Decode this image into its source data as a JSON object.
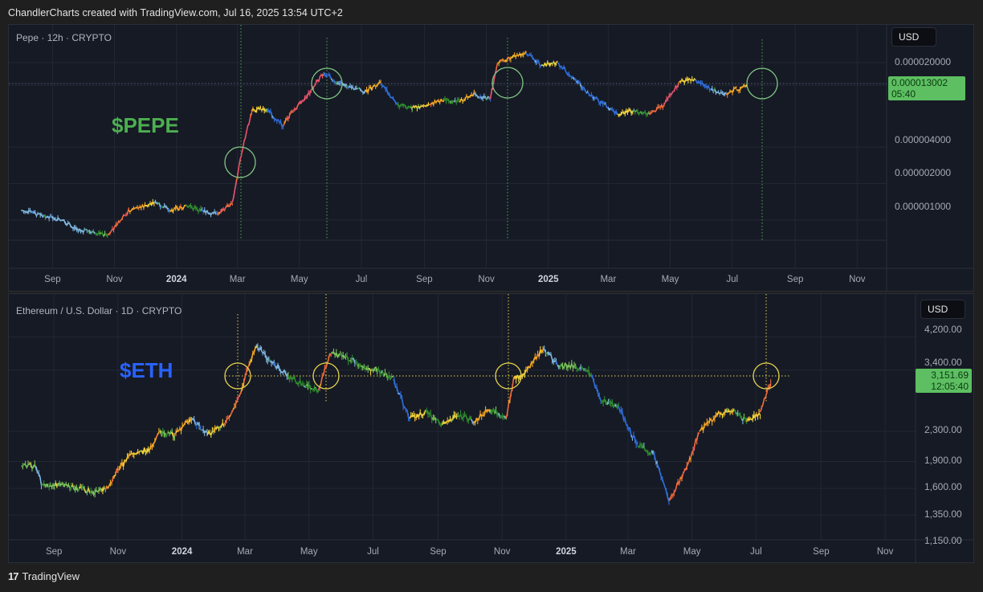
{
  "header": {
    "attribution": "ChandlerCharts created with TradingView.com, Jul 16, 2025 13:54 UTC+2"
  },
  "footer": {
    "logo_icon": "tradingview-logo-icon",
    "logo_glyph": "17",
    "brand": "TradingView"
  },
  "colors": {
    "panel_bg": "#161a25",
    "grid": "#232734",
    "pepe_accent": "#4caf50",
    "eth_accent": "#2962ff",
    "pepe_circle": "#81c784",
    "eth_circle": "#e8d44d",
    "price_tag": "#5dbf61"
  },
  "top_panel": {
    "title": "Pepe · 12h · CRYPTO",
    "big_label": "$PEPE",
    "currency_button": "USD",
    "price_ticks": [
      "0.000020000",
      "0.000004000",
      "0.000002000",
      "0.000001000"
    ],
    "last_price": "0.000013002",
    "countdown": "05:40",
    "time_ticks": [
      "Sep",
      "Nov",
      "2024",
      "Mar",
      "May",
      "Jul",
      "Sep",
      "Nov",
      "2025",
      "Mar",
      "May",
      "Jul",
      "Sep",
      "Nov"
    ]
  },
  "bottom_panel": {
    "title": "Ethereum / U.S. Dollar · 1D · CRYPTO",
    "big_label": "$ETH",
    "currency_button": "USD",
    "price_ticks": [
      "4,200.00",
      "3,400.00",
      "2,300.00",
      "1,900.00",
      "1,600.00",
      "1,350.00",
      "1,150.00"
    ],
    "last_price": "3,151.69",
    "countdown": "12:05:40",
    "time_ticks": [
      "Sep",
      "Nov",
      "2024",
      "Mar",
      "May",
      "Jul",
      "Sep",
      "Nov",
      "2025",
      "Mar",
      "May",
      "Jul",
      "Sep",
      "Nov"
    ]
  },
  "chart_data": [
    {
      "type": "line",
      "title": "Pepe · 12h · CRYPTO",
      "annotation": "$PEPE",
      "scale": "log",
      "xlabel": "",
      "ylabel": "USD",
      "x_ticks": [
        "Sep",
        "Nov",
        "2024",
        "Mar",
        "May",
        "Jul",
        "Sep",
        "Nov",
        "2025",
        "Mar",
        "May",
        "Jul",
        "Sep",
        "Nov"
      ],
      "y_ticks": [
        2e-05,
        4e-06,
        2e-06,
        1e-06
      ],
      "last_value": 1.3002e-05,
      "highlight_circles": [
        "late Feb 2024",
        "late May 2024",
        "early Nov 2024",
        "mid Jul 2025"
      ],
      "series": [
        {
          "name": "PEPE/USD",
          "x": [
            "2023-08-01",
            "2023-08-20",
            "2023-09-10",
            "2023-09-25",
            "2023-10-10",
            "2023-10-25",
            "2023-11-05",
            "2023-11-15",
            "2023-12-01",
            "2023-12-10",
            "2023-12-25",
            "2024-01-10",
            "2024-01-25",
            "2024-02-10",
            "2024-02-25",
            "2024-03-05",
            "2024-03-15",
            "2024-03-30",
            "2024-04-15",
            "2024-04-25",
            "2024-05-10",
            "2024-05-25",
            "2024-06-05",
            "2024-06-20",
            "2024-07-05",
            "2024-07-20",
            "2024-08-05",
            "2024-08-20",
            "2024-09-05",
            "2024-09-20",
            "2024-10-05",
            "2024-10-20",
            "2024-11-05",
            "2024-11-12",
            "2024-11-25",
            "2024-12-10",
            "2024-12-25",
            "2025-01-10",
            "2025-01-25",
            "2025-02-10",
            "2025-02-25",
            "2025-03-10",
            "2025-03-25",
            "2025-04-10",
            "2025-04-25",
            "2025-05-10",
            "2025-05-25",
            "2025-06-10",
            "2025-06-25",
            "2025-07-05",
            "2025-07-15"
          ],
          "values": [
            1.2e-06,
            1.1e-06,
            9.8e-07,
            8.5e-07,
            7.8e-07,
            7.5e-07,
            9.5e-07,
            1.2e-06,
            1.3e-06,
            1.4e-06,
            1.2e-06,
            1.3e-06,
            1.2e-06,
            1.1e-06,
            1.4e-06,
            3.5e-06,
            8e-06,
            8.2e-06,
            6e-06,
            8e-06,
            1.1e-05,
            1.65e-05,
            1.4e-05,
            1.25e-05,
            1.15e-05,
            1.35e-05,
            9e-06,
            8.5e-06,
            9e-06,
            1e-05,
            9.5e-06,
            1.1e-05,
            1e-05,
            2e-05,
            2.2e-05,
            2.4e-05,
            1.9e-05,
            2e-05,
            1.5e-05,
            1.1e-05,
            9e-06,
            7.5e-06,
            8e-06,
            7.5e-06,
            9e-06,
            1.4e-05,
            1.45e-05,
            1.2e-05,
            1.1e-05,
            1.2e-05,
            1.3e-05
          ]
        }
      ]
    },
    {
      "type": "line",
      "title": "Ethereum / U.S. Dollar · 1D · CRYPTO",
      "annotation": "$ETH",
      "scale": "log",
      "xlabel": "",
      "ylabel": "USD",
      "x_ticks": [
        "Sep",
        "Nov",
        "2024",
        "Mar",
        "May",
        "Jul",
        "Sep",
        "Nov",
        "2025",
        "Mar",
        "May",
        "Jul",
        "Sep",
        "Nov"
      ],
      "y_ticks": [
        4200,
        3400,
        2300,
        1900,
        1600,
        1350,
        1150
      ],
      "last_value": 3151.69,
      "reference_line": 3151.69,
      "highlight_circles": [
        "early Mar 2024",
        "late May 2024",
        "early Nov 2024",
        "mid Jul 2025"
      ],
      "series": [
        {
          "name": "ETH/USD",
          "x": [
            "2023-08-01",
            "2023-08-15",
            "2023-08-20",
            "2023-09-10",
            "2023-09-25",
            "2023-10-10",
            "2023-10-20",
            "2023-11-01",
            "2023-11-15",
            "2023-12-01",
            "2023-12-10",
            "2023-12-25",
            "2024-01-10",
            "2024-01-25",
            "2024-02-10",
            "2024-02-25",
            "2024-03-05",
            "2024-03-12",
            "2024-03-25",
            "2024-04-10",
            "2024-04-25",
            "2024-05-10",
            "2024-05-22",
            "2024-06-05",
            "2024-06-20",
            "2024-07-05",
            "2024-07-20",
            "2024-08-05",
            "2024-08-20",
            "2024-09-05",
            "2024-09-20",
            "2024-10-05",
            "2024-10-20",
            "2024-11-05",
            "2024-11-12",
            "2024-11-25",
            "2024-12-10",
            "2024-12-25",
            "2025-01-10",
            "2025-01-25",
            "2025-02-03",
            "2025-02-20",
            "2025-03-10",
            "2025-03-25",
            "2025-04-09",
            "2025-04-25",
            "2025-05-08",
            "2025-05-25",
            "2025-06-10",
            "2025-06-22",
            "2025-07-05",
            "2025-07-15"
          ],
          "values": [
            1850,
            1840,
            1650,
            1620,
            1600,
            1560,
            1580,
            1800,
            2000,
            2050,
            2300,
            2250,
            2500,
            2250,
            2400,
            2900,
            3500,
            4000,
            3600,
            3300,
            3100,
            3000,
            3800,
            3700,
            3500,
            3400,
            3200,
            2500,
            2600,
            2400,
            2550,
            2450,
            2650,
            2500,
            3200,
            3400,
            3900,
            3500,
            3500,
            3300,
            2800,
            2700,
            2100,
            2000,
            1480,
            1800,
            2300,
            2550,
            2650,
            2450,
            2600,
            3151.69
          ]
        }
      ]
    }
  ]
}
